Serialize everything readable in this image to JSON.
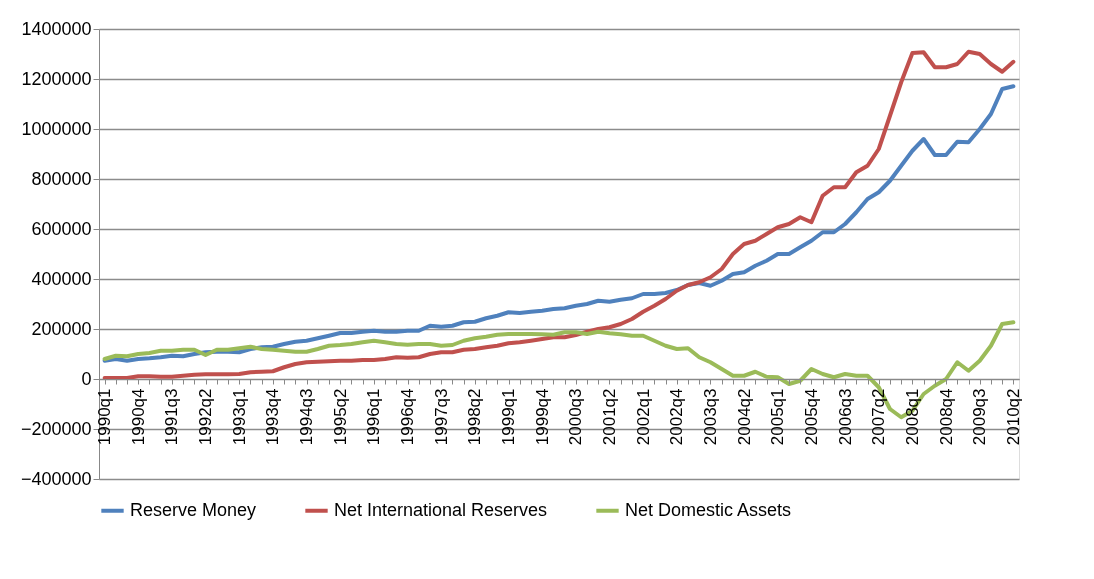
{
  "chart_data": {
    "type": "line",
    "categories": [
      "1990q1",
      null,
      null,
      "1990q4",
      null,
      null,
      "1991q3",
      null,
      null,
      "1992q2",
      null,
      null,
      "1993q1",
      null,
      null,
      "1993q4",
      null,
      null,
      "1994q3",
      null,
      null,
      "1995q2",
      null,
      null,
      "1996q1",
      null,
      null,
      "1996q4",
      null,
      null,
      "1997q3",
      null,
      null,
      "1998q2",
      null,
      null,
      "1999q1",
      null,
      null,
      "1999q4",
      null,
      null,
      "2000q3",
      null,
      null,
      "2001q2",
      null,
      null,
      "2002q1",
      null,
      null,
      "2002q4",
      null,
      null,
      "2003q3",
      null,
      null,
      "2004q2",
      null,
      null,
      "2005q1",
      null,
      null,
      "2005q4",
      null,
      null,
      "2006q3",
      null,
      null,
      "2007q2",
      null,
      null,
      "2008q1",
      null,
      null,
      "2008q4",
      null,
      null,
      "2009q3",
      null,
      null,
      "2010q2"
    ],
    "series": [
      {
        "name": "Reserve Money",
        "color": "#4f81bd",
        "values": [
          73000,
          80000,
          73000,
          80000,
          83000,
          87000,
          93000,
          91000,
          100000,
          107000,
          109000,
          109000,
          107000,
          120000,
          127000,
          129000,
          140000,
          149000,
          153000,
          163000,
          173000,
          184000,
          184000,
          189000,
          193000,
          189000,
          189000,
          193000,
          193000,
          213000,
          209000,
          213000,
          227000,
          229000,
          243000,
          253000,
          267000,
          264000,
          269000,
          273000,
          280000,
          283000,
          293000,
          300000,
          313000,
          309000,
          317000,
          323000,
          340000,
          340000,
          344000,
          356000,
          376000,
          384000,
          373000,
          393000,
          420000,
          427000,
          453000,
          473000,
          500000,
          500000,
          527000,
          553000,
          587000,
          587000,
          620000,
          667000,
          720000,
          747000,
          793000,
          853000,
          913000,
          960000,
          896000,
          896000,
          949000,
          947000,
          1000000,
          1060000,
          1160000,
          1171000
        ]
      },
      {
        "name": "Net International Reserves",
        "color": "#c0504d",
        "values": [
          4000,
          4000,
          4000,
          11000,
          11000,
          9000,
          9000,
          13000,
          17000,
          19000,
          19000,
          19000,
          20000,
          27000,
          29000,
          31000,
          47000,
          60000,
          67000,
          69000,
          71000,
          73000,
          73000,
          76000,
          76000,
          80000,
          87000,
          85000,
          87000,
          100000,
          107000,
          107000,
          117000,
          120000,
          127000,
          133000,
          143000,
          147000,
          153000,
          160000,
          167000,
          167000,
          176000,
          189000,
          200000,
          207000,
          220000,
          240000,
          269000,
          293000,
          320000,
          353000,
          376000,
          387000,
          407000,
          440000,
          500000,
          540000,
          553000,
          580000,
          607000,
          620000,
          647000,
          627000,
          733000,
          767000,
          767000,
          827000,
          853000,
          920000,
          1053000,
          1187000,
          1304000,
          1307000,
          1247000,
          1247000,
          1260000,
          1309000,
          1300000,
          1260000,
          1229000,
          1269000
        ]
      },
      {
        "name": "Net Domestic Assets",
        "color": "#9bbb59",
        "values": [
          80000,
          93000,
          91000,
          100000,
          104000,
          113000,
          113000,
          117000,
          117000,
          96000,
          117000,
          117000,
          123000,
          129000,
          120000,
          117000,
          113000,
          109000,
          109000,
          120000,
          133000,
          136000,
          140000,
          147000,
          153000,
          147000,
          140000,
          137000,
          140000,
          140000,
          133000,
          136000,
          153000,
          163000,
          169000,
          177000,
          180000,
          180000,
          180000,
          179000,
          177000,
          187000,
          187000,
          180000,
          189000,
          183000,
          179000,
          173000,
          173000,
          153000,
          133000,
          120000,
          123000,
          87000,
          67000,
          40000,
          13000,
          13000,
          29000,
          9000,
          7000,
          -20000,
          -7000,
          40000,
          20000,
          7000,
          20000,
          13000,
          13000,
          -33000,
          -120000,
          -153000,
          -127000,
          -60000,
          -27000,
          0,
          67000,
          33000,
          73000,
          133000,
          220000,
          227000
        ]
      }
    ],
    "ylim": [
      -400000,
      1400000
    ],
    "yticks": [
      -400000,
      -200000,
      0,
      200000,
      400000,
      600000,
      800000,
      1000000,
      1200000,
      1400000
    ],
    "grid": "y",
    "legend": "bottom",
    "marker": "none",
    "line_style": "solid"
  }
}
